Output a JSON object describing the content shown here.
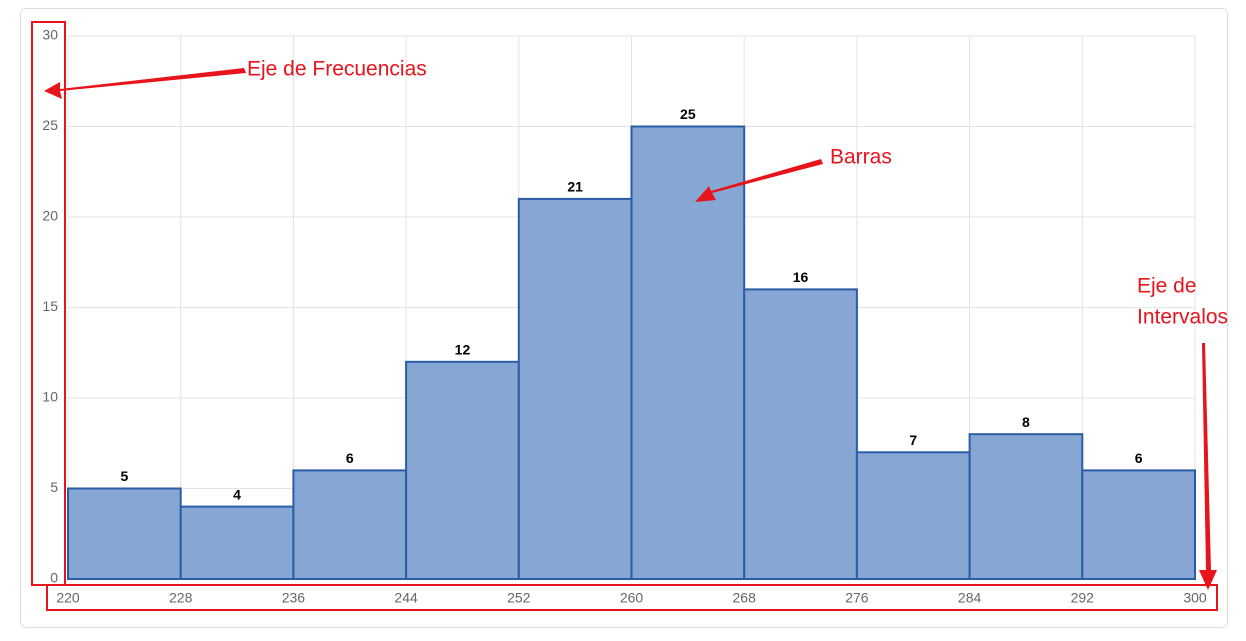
{
  "chart_data": {
    "type": "histogram",
    "bins": [
      220,
      228,
      236,
      244,
      252,
      260,
      268,
      276,
      284,
      292,
      300
    ],
    "values": [
      5,
      4,
      6,
      12,
      21,
      25,
      16,
      7,
      8,
      6
    ],
    "color": "#86a7d3",
    "edgecolor": "#2a5ca8",
    "xlim": [
      220,
      300
    ],
    "xticks": [
      220,
      228,
      236,
      244,
      252,
      260,
      268,
      276,
      284,
      292,
      300
    ],
    "ylim": [
      0,
      30
    ],
    "yticks": [
      0,
      5,
      10,
      15,
      20,
      25,
      30
    ],
    "grid": true,
    "annotations": [
      [
        "Eje de Frecuencias"
      ],
      [
        "Barras"
      ],
      [
        "Eje de",
        "Intervalos"
      ]
    ]
  }
}
